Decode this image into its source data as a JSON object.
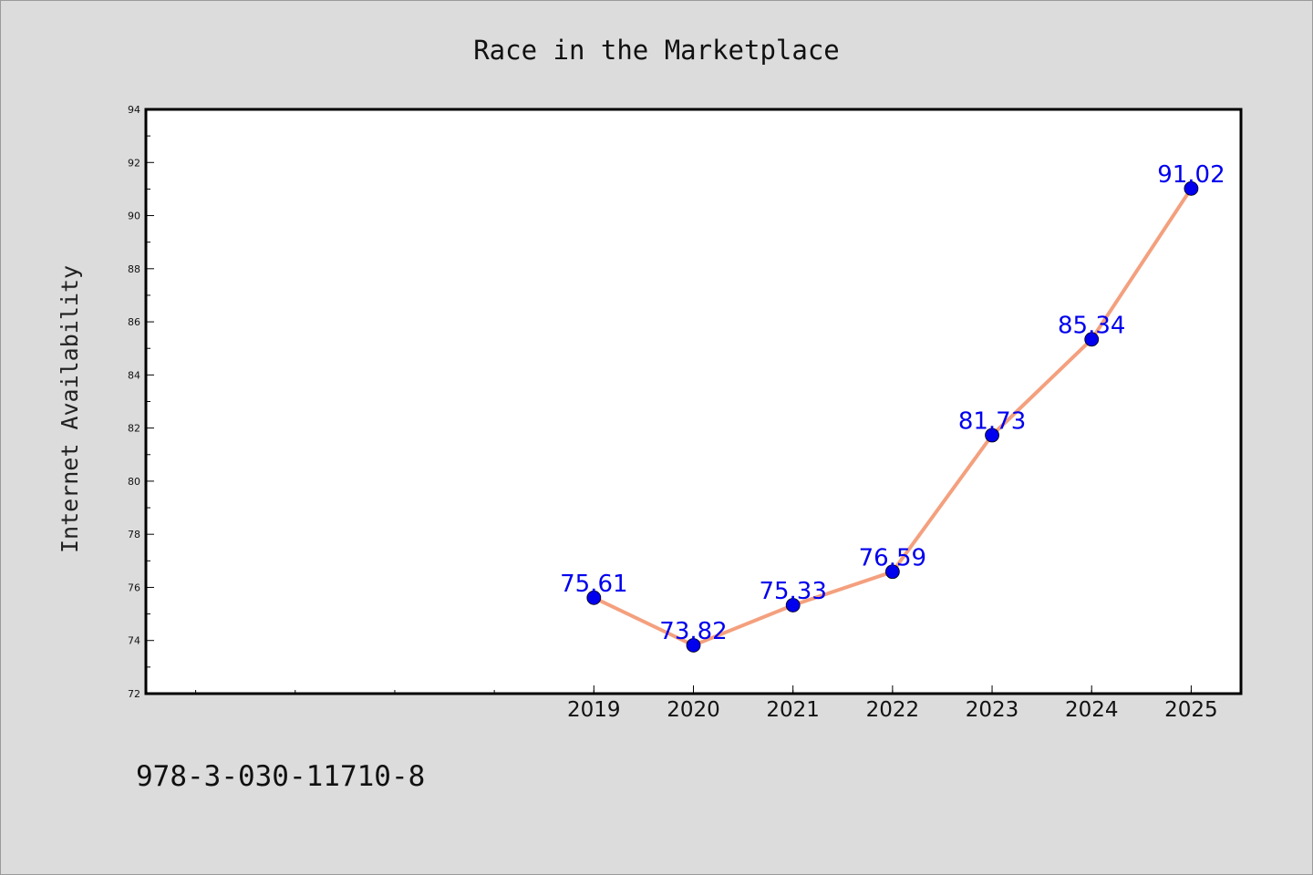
{
  "chart_data": {
    "type": "line",
    "title": "Race in the Marketplace",
    "xlabel": "",
    "ylabel": "Internet Availability",
    "x": [
      "2019",
      "2020",
      "2021",
      "2022",
      "2023",
      "2024",
      "2025"
    ],
    "series": [
      {
        "values": [
          75.61,
          73.82,
          75.33,
          76.59,
          81.73,
          85.34,
          91.02
        ]
      }
    ],
    "data_labels": [
      "75.61",
      "73.82",
      "75.33",
      "76.59",
      "81.73",
      "85.34",
      "91.02"
    ],
    "ylim": [
      72,
      94
    ],
    "yticks": [
      72,
      74,
      76,
      78,
      80,
      82,
      84,
      86,
      88,
      90,
      92,
      94
    ],
    "xlim_years": [
      2014.5,
      2025.5
    ],
    "grid": false,
    "line_color": "#f4a07e",
    "marker_color": "#0000ee",
    "label_color": "#0000ee"
  },
  "footer": {
    "isbn": "978-3-030-11710-8"
  }
}
